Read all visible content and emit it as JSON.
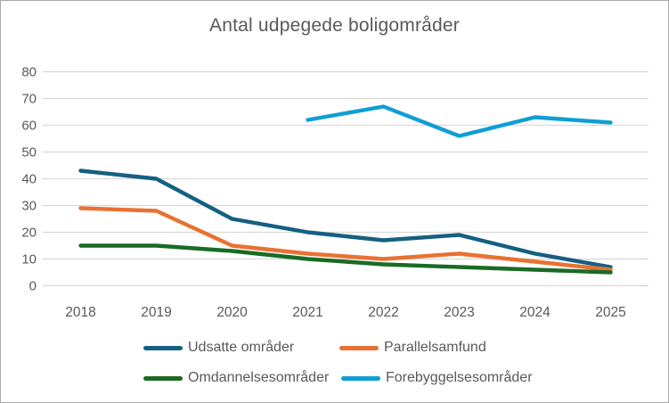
{
  "chart_data": {
    "type": "line",
    "title": "Antal udpegede boligområder",
    "categories": [
      "2018",
      "2019",
      "2020",
      "2021",
      "2022",
      "2023",
      "2024",
      "2025"
    ],
    "series": [
      {
        "name": "Udsatte områder",
        "color": "#156082",
        "values": [
          43,
          40,
          25,
          20,
          17,
          19,
          12,
          7
        ]
      },
      {
        "name": "Parallelsamfund",
        "color": "#E97132",
        "values": [
          29,
          28,
          15,
          12,
          10,
          12,
          9,
          6
        ]
      },
      {
        "name": "Omdannelsesområder",
        "color": "#196B24",
        "values": [
          15,
          15,
          13,
          10,
          8,
          7,
          6,
          5
        ]
      },
      {
        "name": "Forebyggelsesområder",
        "color": "#0F9ED5",
        "values": [
          null,
          null,
          null,
          62,
          67,
          56,
          63,
          61
        ]
      }
    ],
    "ylim": [
      0,
      80
    ],
    "yticks": [
      0,
      10,
      20,
      30,
      40,
      50,
      60,
      70,
      80
    ],
    "grid": true,
    "legend_position": "bottom",
    "colors": {
      "text": "#595959",
      "gridline": "#D9D9D9",
      "background": "#FFFFFF",
      "border": "#ABABAB"
    }
  }
}
